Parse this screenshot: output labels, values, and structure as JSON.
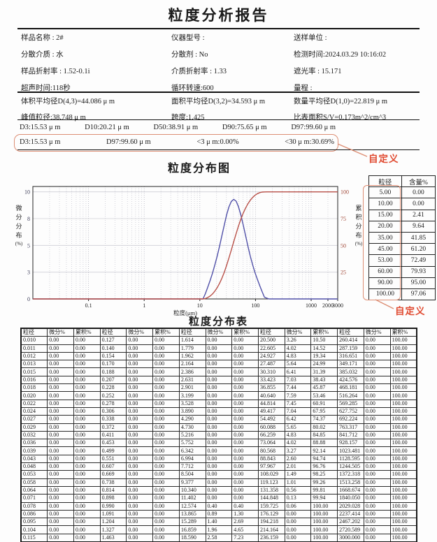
{
  "title": "粒度分析报告",
  "colors": {
    "annotation_text": "#e04a30",
    "annotation_box": "#dd8e74",
    "curve_blue": "#5050a8",
    "curve_red": "#b85048",
    "right_axis_labels": "#a04838",
    "left_axis_labels": "#3c3c58",
    "grid_minor": "#c4c4ce",
    "grid_major": "#a8a8b6"
  },
  "info": {
    "rows": [
      [
        "样品名称 : 2#",
        "仪器型号 :",
        "送样单位 :"
      ],
      [
        "分散介质 : 水",
        "分散剂 : No",
        "检测时间:2024.03.29 10:16:02"
      ],
      [
        "样品折射率 : 1.52-0.1i",
        "介质折射率 : 1.33",
        "遮光率 : 15.171"
      ],
      [
        "超声时间:118秒",
        "循环转速:600",
        "量程 :"
      ]
    ]
  },
  "averages": {
    "rows": [
      [
        "体积平均径D(4,3)=44.086 μ m",
        "面积平均径D(3,2)=34.593 μ m",
        "数量平均径D(1,0)=22.819 μ m"
      ],
      [
        "峰值粒径:38.748 μ m",
        "跨度:1.425",
        "比表面积S/V=0.173m^2/cm^3"
      ]
    ]
  },
  "dvalues": {
    "items": [
      "D3:15.53 μ m",
      "D10:20.21 μ m",
      "D50:38.91 μ m",
      "D90:75.65 μ m",
      "D97:99.60 μ m"
    ]
  },
  "custom": {
    "items": [
      "D3:15.53 μ m",
      "D97:99.60 μ m",
      "<3 μ m:0.00%",
      "<30 μ m:30.69%"
    ],
    "annotation": "自定义"
  },
  "chart_data": {
    "type": "line",
    "title": "粒度分布图",
    "xlabel": "粒度(μm)",
    "ylabel_left": "微分分布(%)",
    "ylabel_right": "累积分布(%)",
    "x_scale": "log",
    "xlim": [
      0.01,
      3000
    ],
    "ylim_left": [
      0,
      10
    ],
    "ylim_right": [
      0,
      100
    ],
    "x_ticks": [
      "0.1",
      "1",
      "10",
      "100",
      "1000",
      "2000",
      "3000"
    ],
    "x_tick_values": [
      0.1,
      1,
      10,
      100,
      1000,
      2000,
      3000
    ],
    "left_tick_labels": [
      "0",
      "3",
      "5",
      "8",
      "10"
    ],
    "left_tick_positions": [
      0,
      2.5,
      5,
      7.5,
      10
    ],
    "right_tick_labels": [
      "25",
      "50",
      "75",
      "100"
    ],
    "right_tick_positions": [
      25,
      50,
      75,
      100
    ],
    "grid": true,
    "x": [
      0.01,
      10.34,
      11.402,
      12.574,
      13.865,
      15.289,
      16.859,
      18.59,
      20.5,
      22.605,
      24.927,
      27.487,
      30.31,
      33.423,
      36.855,
      40.64,
      44.814,
      49.417,
      54.492,
      60.088,
      66.259,
      73.064,
      80.568,
      88.843,
      97.967,
      108.029,
      119.123,
      131.358,
      144.848,
      159.725,
      176.129,
      3000
    ],
    "series": [
      {
        "name": "微分分布",
        "axis": "left",
        "values": [
          0,
          0,
          0,
          0.49,
          1.09,
          1.72,
          2.4,
          3.16,
          3.99,
          4.92,
          5.92,
          6.91,
          7.85,
          8.61,
          9.11,
          9.3,
          9.13,
          8.62,
          7.86,
          6.92,
          5.92,
          4.92,
          4.01,
          3.19,
          2.46,
          1.83,
          1.24,
          0.69,
          0.16,
          0.07,
          0,
          0
        ]
      },
      {
        "name": "累积分布",
        "axis": "right",
        "values": [
          0,
          0,
          0,
          0.4,
          1.3,
          2.69,
          4.65,
          7.23,
          10.5,
          14.52,
          19.34,
          24.99,
          31.39,
          38.43,
          45.87,
          53.46,
          60.91,
          67.95,
          74.37,
          80.02,
          84.85,
          88.88,
          92.14,
          94.74,
          96.76,
          98.25,
          99.26,
          99.81,
          99.94,
          100,
          100,
          100
        ]
      }
    ]
  },
  "side_table": {
    "headers": [
      "粒径",
      "含量%"
    ],
    "rows": [
      [
        "5.00",
        "0.00"
      ],
      [
        "10.00",
        "0.00"
      ],
      [
        "15.00",
        "2.41"
      ],
      [
        "20.00",
        "9.64"
      ],
      [
        "35.00",
        "41.85"
      ],
      [
        "45.00",
        "61.20"
      ],
      [
        "53.00",
        "72.49"
      ],
      [
        "60.00",
        "79.93"
      ],
      [
        "90.00",
        "95.00"
      ],
      [
        "100.00",
        "97.06"
      ]
    ],
    "annotation": "自定义"
  },
  "dist_table": {
    "title": "粒度分布表",
    "headers": [
      "粒径",
      "微分%",
      "累积%"
    ],
    "rows": [
      [
        "0.010",
        "0.00",
        "0.00",
        "0.127",
        "0.00",
        "0.00",
        "1.614",
        "0.00",
        "0.00",
        "20.500",
        "3.26",
        "10.50",
        "260.414",
        "0.00",
        "100.00"
      ],
      [
        "0.011",
        "0.00",
        "0.00",
        "0.140",
        "0.00",
        "0.00",
        "1.779",
        "0.00",
        "0.00",
        "22.605",
        "4.02",
        "14.52",
        "287.159",
        "0.00",
        "100.00"
      ],
      [
        "0.012",
        "0.00",
        "0.00",
        "0.154",
        "0.00",
        "0.00",
        "1.962",
        "0.00",
        "0.00",
        "24.927",
        "4.83",
        "19.34",
        "316.651",
        "0.00",
        "100.00"
      ],
      [
        "0.013",
        "0.00",
        "0.00",
        "0.170",
        "0.00",
        "0.00",
        "2.164",
        "0.00",
        "0.00",
        "27.487",
        "5.64",
        "24.99",
        "349.171",
        "0.00",
        "100.00"
      ],
      [
        "0.015",
        "0.00",
        "0.00",
        "0.188",
        "0.00",
        "0.00",
        "2.386",
        "0.00",
        "0.00",
        "30.310",
        "6.41",
        "31.39",
        "385.032",
        "0.00",
        "100.00"
      ],
      [
        "0.016",
        "0.00",
        "0.00",
        "0.207",
        "0.00",
        "0.00",
        "2.631",
        "0.00",
        "0.00",
        "33.423",
        "7.03",
        "38.43",
        "424.576",
        "0.00",
        "100.00"
      ],
      [
        "0.018",
        "0.00",
        "0.00",
        "0.228",
        "0.00",
        "0.00",
        "2.901",
        "0.00",
        "0.00",
        "36.855",
        "7.44",
        "45.87",
        "468.181",
        "0.00",
        "100.00"
      ],
      [
        "0.020",
        "0.00",
        "0.00",
        "0.252",
        "0.00",
        "0.00",
        "3.199",
        "0.00",
        "0.00",
        "40.640",
        "7.59",
        "53.46",
        "516.264",
        "0.00",
        "100.00"
      ],
      [
        "0.022",
        "0.00",
        "0.00",
        "0.278",
        "0.00",
        "0.00",
        "3.528",
        "0.00",
        "0.00",
        "44.814",
        "7.45",
        "60.91",
        "569.285",
        "0.00",
        "100.00"
      ],
      [
        "0.024",
        "0.00",
        "0.00",
        "0.306",
        "0.00",
        "0.00",
        "3.890",
        "0.00",
        "0.00",
        "49.417",
        "7.04",
        "67.95",
        "627.752",
        "0.00",
        "100.00"
      ],
      [
        "0.027",
        "0.00",
        "0.00",
        "0.338",
        "0.00",
        "0.00",
        "4.290",
        "0.00",
        "0.00",
        "54.492",
        "6.42",
        "74.37",
        "692.224",
        "0.00",
        "100.00"
      ],
      [
        "0.029",
        "0.00",
        "0.00",
        "0.372",
        "0.00",
        "0.00",
        "4.730",
        "0.00",
        "0.00",
        "60.088",
        "5.65",
        "80.02",
        "763.317",
        "0.00",
        "100.00"
      ],
      [
        "0.032",
        "0.00",
        "0.00",
        "0.411",
        "0.00",
        "0.00",
        "5.216",
        "0.00",
        "0.00",
        "66.259",
        "4.83",
        "84.85",
        "841.712",
        "0.00",
        "100.00"
      ],
      [
        "0.036",
        "0.00",
        "0.00",
        "0.453",
        "0.00",
        "0.00",
        "5.752",
        "0.00",
        "0.00",
        "73.064",
        "4.02",
        "88.88",
        "928.157",
        "0.00",
        "100.00"
      ],
      [
        "0.039",
        "0.00",
        "0.00",
        "0.499",
        "0.00",
        "0.00",
        "6.342",
        "0.00",
        "0.00",
        "80.568",
        "3.27",
        "92.14",
        "1023.481",
        "0.00",
        "100.00"
      ],
      [
        "0.043",
        "0.00",
        "0.00",
        "0.551",
        "0.00",
        "0.00",
        "6.994",
        "0.00",
        "0.00",
        "88.843",
        "2.60",
        "94.74",
        "1128.595",
        "0.00",
        "100.00"
      ],
      [
        "0.048",
        "0.00",
        "0.00",
        "0.607",
        "0.00",
        "0.00",
        "7.712",
        "0.00",
        "0.00",
        "97.967",
        "2.01",
        "96.76",
        "1244.505",
        "0.00",
        "100.00"
      ],
      [
        "0.053",
        "0.00",
        "0.00",
        "0.669",
        "0.00",
        "0.00",
        "8.504",
        "0.00",
        "0.00",
        "108.029",
        "1.49",
        "98.25",
        "1372.318",
        "0.00",
        "100.00"
      ],
      [
        "0.058",
        "0.00",
        "0.00",
        "0.738",
        "0.00",
        "0.00",
        "9.377",
        "0.00",
        "0.00",
        "119.123",
        "1.01",
        "99.26",
        "1513.258",
        "0.00",
        "100.00"
      ],
      [
        "0.064",
        "0.00",
        "0.00",
        "0.814",
        "0.00",
        "0.00",
        "10.340",
        "0.00",
        "0.00",
        "131.358",
        "0.56",
        "99.81",
        "1668.674",
        "0.00",
        "100.00"
      ],
      [
        "0.071",
        "0.00",
        "0.00",
        "0.898",
        "0.00",
        "0.00",
        "11.402",
        "0.00",
        "0.00",
        "144.848",
        "0.13",
        "99.94",
        "1840.050",
        "0.00",
        "100.00"
      ],
      [
        "0.078",
        "0.00",
        "0.00",
        "0.990",
        "0.00",
        "0.00",
        "12.574",
        "0.40",
        "0.40",
        "159.725",
        "0.06",
        "100.00",
        "2029.028",
        "0.00",
        "100.00"
      ],
      [
        "0.086",
        "0.00",
        "0.00",
        "1.091",
        "0.00",
        "0.00",
        "13.865",
        "0.89",
        "1.30",
        "176.129",
        "0.00",
        "100.00",
        "2237.414",
        "0.00",
        "100.00"
      ],
      [
        "0.095",
        "0.00",
        "0.00",
        "1.204",
        "0.00",
        "0.00",
        "15.289",
        "1.40",
        "2.69",
        "194.218",
        "0.00",
        "100.00",
        "2467.202",
        "0.00",
        "100.00"
      ],
      [
        "0.104",
        "0.00",
        "0.00",
        "1.327",
        "0.00",
        "0.00",
        "16.859",
        "1.96",
        "4.65",
        "214.164",
        "0.00",
        "100.00",
        "2720.589",
        "0.00",
        "100.00"
      ],
      [
        "0.115",
        "0.00",
        "0.00",
        "1.463",
        "0.00",
        "0.00",
        "18.590",
        "2.58",
        "7.23",
        "236.159",
        "0.00",
        "100.00",
        "3000.000",
        "0.00",
        "100.00"
      ]
    ]
  }
}
